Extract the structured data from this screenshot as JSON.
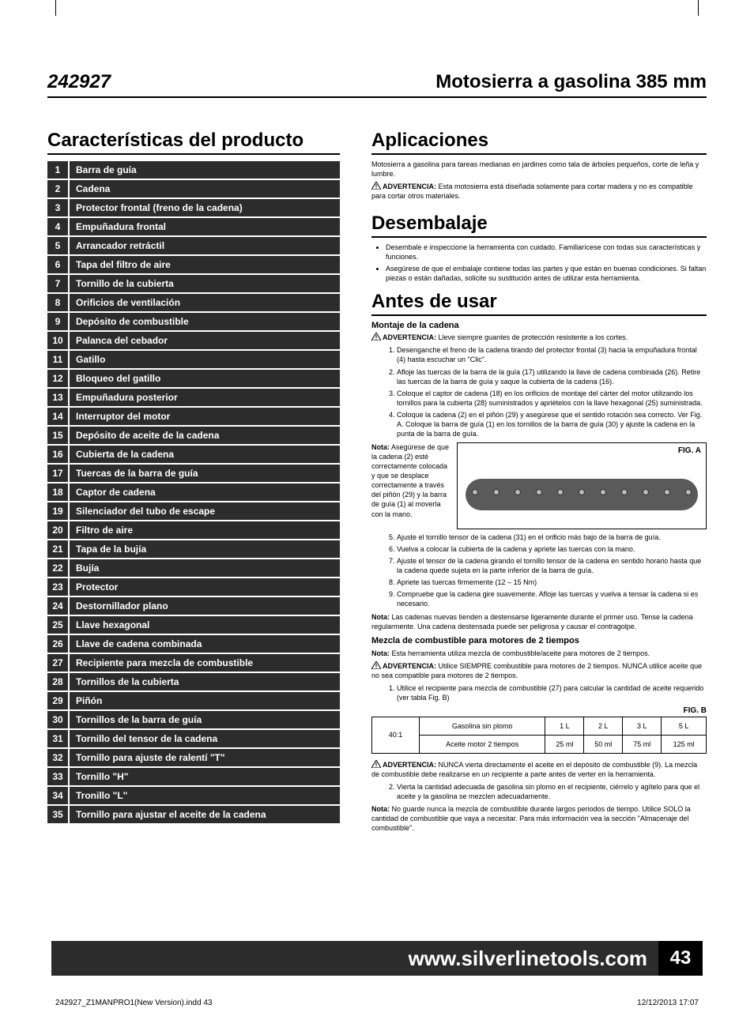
{
  "header": {
    "model": "242927",
    "title": "Motosierra a gasolina 385 mm"
  },
  "features": {
    "heading": "Características del producto",
    "items": [
      "Barra de guía",
      "Cadena",
      "Protector frontal (freno de la cadena)",
      "Empuñadura frontal",
      "Arrancador retráctil",
      "Tapa del filtro de aire",
      "Tornillo de la cubierta",
      "Orificios de ventilación",
      "Depósito de combustible",
      "Palanca del cebador",
      "Gatillo",
      "Bloqueo del gatillo",
      "Empuñadura posterior",
      "Interruptor del motor",
      "Depósito de aceite de la cadena",
      "Cubierta de la cadena",
      "Tuercas de la barra de guía",
      "Captor de cadena",
      "Silenciador del tubo de escape",
      "Filtro de aire",
      "Tapa de la bujía",
      "Bujía",
      "Protector",
      "Destornillador plano",
      "Llave hexagonal",
      "Llave de cadena combinada",
      "Recipiente para mezcla de combustible",
      "Tornillos de la cubierta",
      "Piñón",
      "Tornillos de la barra de guía",
      "Tornillo del tensor de la cadena",
      "Tornillo para ajuste de ralentí \"T\"",
      "Tornillo \"H\"",
      "Tronillo \"L\"",
      "Tornillo para ajustar el aceite de la cadena"
    ]
  },
  "applications": {
    "heading": "Aplicaciones",
    "text": "Motosierra a gasolina para tareas medianas en jardines como tala de árboles pequeños, corte de leña y lumbre.",
    "warn_label": "ADVERTENCIA:",
    "warn_text": " Esta motosierra está diseñada solamente para cortar madera y no es compatible para cortar otros materiales."
  },
  "unpacking": {
    "heading": "Desembalaje",
    "bullets": [
      "Desembale e inspeccione la herramienta con cuidado. Familiarícese con todas sus características y funciones.",
      "Asegúrese de que el embalaje contiene todas las partes y que están en buenas condiciones. Si faltan piezas o están dañadas, solicite su sustitución antes de utilizar esta herramienta."
    ]
  },
  "before_use": {
    "heading": "Antes de usar",
    "chain_mount_heading": "Montaje de la cadena",
    "warn1_label": "ADVERTENCIA:",
    "warn1_text": " Lleve siempre guantes de protección resistente a los cortes.",
    "steps_a": [
      "Desenganche el freno de la cadena tirando del protector frontal (3) hacia la empuñadura frontal (4) hasta escuchar un \"Clic\".",
      "Afloje las tuercas de la barra de la guía (17) utilizando la llave de cadena combinada (26). Retire las tuercas de la barra de guía y saque la cubierta de la cadena (16).",
      "Coloque el captor de cadena (18) en los orificios de montaje del cárter del motor utilizando los tornillos para la cubierta (28) suministrados y apriételos con la llave hexagonal (25) suministrada.",
      "Coloque la cadena (2) en el piñón (29) y asegúrese que el sentido rotación sea correcto. Ver Fig. A. Coloque la barra de guía (1) en los tornillos de la barra de guía (30) y ajuste la cadena en la punta de la barra de guía."
    ],
    "figA_note_label": "Nota:",
    "figA_note_text": " Asegúrese de que la cadena (2) esté correctamente colocada y que se desplace correctamente a través del piñón (29) y la barra de guía (1) al moverla con la mano.",
    "figA_label": "FIG. A",
    "steps_b_start": 5,
    "steps_b": [
      "Ajuste el tornillo tensor de la cadena (31) en el orificio más bajo de la barra de guía.",
      "Vuelva a colocar la cubierta de la cadena y apriete las tuercas con la mano.",
      "Ajuste el tensor de la cadena girando el tornillo tensor de la cadena en sentido horario hasta que la cadena quede sujeta en la parte inferior de la barra de guía.",
      "Apriete las tuercas firmemente (12 – 15 Nm)",
      "Compruebe que la cadena gire suavemente. Afloje las tuercas y vuelva a tensar la cadena si es necesario."
    ],
    "nota2_label": "Nota:",
    "nota2_text": " Las cadenas nuevas tienden a destensarse ligeramente durante el primer uso. Tense la cadena regularmente. Una cadena destensada puede ser peligrosa y causar el contragolpe.",
    "fuel_heading": "Mezcla de combustible para motores de 2 tiempos",
    "fuel_nota_label": "Nota:",
    "fuel_nota_text": " Esta herramienta utiliza mezcla de combustible/aceite para motores de 2 tiempos.",
    "fuel_warn_label": "ADVERTENCIA:",
    "fuel_warn_text": " Utilice SIEMPRE combustible para motores de 2 tiempos. NUNCA utilice aceite que no sea compatible para motores de 2 tiempos.",
    "fuel_step1": "Utilice el recipiente para mezcla de combustible (27) para calcular la cantidad de aceite requerido (ver tabla Fig. B)",
    "figB_label": "FIG. B",
    "mix_table": {
      "ratio": "40:1",
      "row1_label": "Gasolina sin plomo",
      "row2_label": "Aceite motor 2 tiempos",
      "cols": [
        "1 L",
        "2 L",
        "3 L",
        "5 L"
      ],
      "oil": [
        "25 ml",
        "50 ml",
        "75 ml",
        "125 ml"
      ]
    },
    "fuel_warn2_label": "ADVERTENCIA:",
    "fuel_warn2_text": " NUNCA vierta directamente el aceite en el depósito de combustible (9). La mezcla de combustible debe realizarse en un recipiente a parte antes de verter en la herramienta.",
    "fuel_step2": "Vierta la cantidad adecuada de gasolina sin plomo en el recipiente, ciérrelo y agítelo para que el aceite y la gasolina se mezclen adecuadamente.",
    "fuel_nota3_label": "Nota:",
    "fuel_nota3_text": " No guarde nunca la mezcla de combustible durante largos periodos de tiempo. Utilice SOLO la cantidad de combustible que vaya a necesitar. Para más información vea la sección \"Almacenaje del combustible\"."
  },
  "footer": {
    "url": "www.silverlinetools.com",
    "page": "43",
    "file": "242927_Z1MANPRO1(New Version).indd   43",
    "timestamp": "12/12/2013   17:07"
  }
}
